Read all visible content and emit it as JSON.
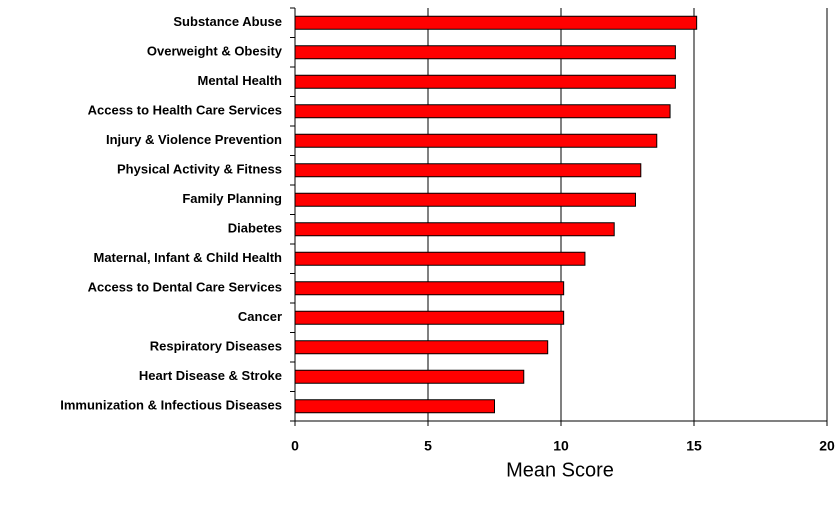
{
  "chart_data": {
    "type": "bar",
    "orientation": "horizontal",
    "title": "",
    "xlabel": "Mean Score",
    "ylabel": "",
    "xlim": [
      0,
      20
    ],
    "xticks": [
      0,
      5,
      10,
      15,
      20
    ],
    "grid": "vertical",
    "bar_color": "#ff0000",
    "bar_edge_color": "#000000",
    "categories": [
      "Substance Abuse",
      "Overweight & Obesity",
      "Mental Health",
      "Access to Health Care Services",
      "Injury & Violence Prevention",
      "Physical Activity & Fitness",
      "Family Planning",
      "Diabetes",
      "Maternal, Infant & Child Health",
      "Access to Dental Care Services",
      "Cancer",
      "Respiratory Diseases",
      "Heart Disease & Stroke",
      "Immunization & Infectious Diseases"
    ],
    "values": [
      15.1,
      14.3,
      14.3,
      14.1,
      13.6,
      13.0,
      12.8,
      12.0,
      10.9,
      10.1,
      10.1,
      9.5,
      8.6,
      7.5
    ]
  }
}
